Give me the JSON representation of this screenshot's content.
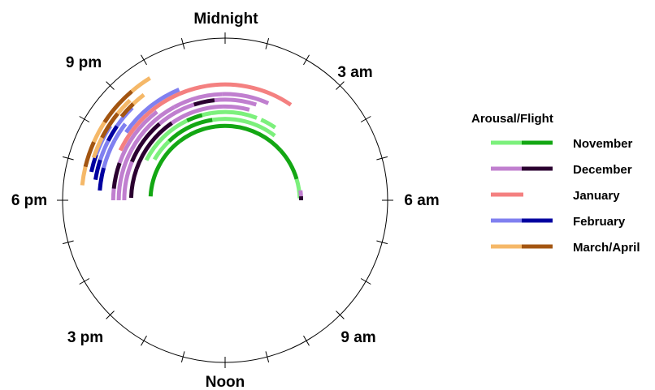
{
  "chart_data": {
    "type": "radial-actogram",
    "title": "",
    "clock_labels": {
      "top": "Midnight",
      "top_right": "3 am",
      "right": "6 am",
      "bottom_right": "9 am",
      "bottom": "Noon",
      "bottom_left": "3 pm",
      "left": "6 pm",
      "top_left": "9 pm"
    },
    "legend": {
      "title": "Arousal/Flight",
      "entries": [
        {
          "label": "November",
          "arousal_color": "#7cf07c",
          "flight_color": "#13a713"
        },
        {
          "label": "December",
          "arousal_color": "#c07fcf",
          "flight_color": "#2b0030"
        },
        {
          "label": "January",
          "arousal_color": "#f48080",
          "flight_color": null
        },
        {
          "label": "February",
          "arousal_color": "#8080f0",
          "flight_color": "#0000a0"
        },
        {
          "label": "March/April",
          "arousal_color": "#f5b868",
          "flight_color": "#a35511"
        }
      ]
    },
    "time_unit": "hour of day (0 = midnight)",
    "series": [
      {
        "name": "November",
        "bouts": [
          {
            "ring": 0.54,
            "segments": [
              [
                18.2,
                21.5,
                "flight"
              ],
              [
                21.5,
                3.2,
                "flight"
              ],
              [
                3.2,
                4.9,
                "flight"
              ],
              [
                4.9,
                5.9,
                "arousal"
              ]
            ]
          },
          {
            "ring": 0.59,
            "segments": [
              [
                20.0,
                21.1,
                "arousal"
              ],
              [
                21.1,
                23.4,
                "flight"
              ],
              [
                23.4,
                2.5,
                "arousal"
              ]
            ]
          },
          {
            "ring": 0.64,
            "segments": [
              [
                19.8,
                22.3,
                "arousal"
              ],
              [
                22.3,
                23.0,
                "flight"
              ],
              [
                23.0,
                23.4,
                "arousal"
              ],
              [
                23.4,
                1.4,
                "arousal"
              ],
              [
                1.6,
                2.3,
                "arousal"
              ]
            ]
          }
        ]
      },
      {
        "name": "December",
        "bouts": [
          {
            "ring": 0.68,
            "segments": [
              [
                18.1,
                19.3,
                "flight"
              ],
              [
                19.3,
                21.7,
                "flight"
              ],
              [
                21.7,
                23.9,
                "arousal"
              ],
              [
                23.9,
                1.0,
                "arousal"
              ]
            ]
          },
          {
            "ring": 0.73,
            "segments": [
              [
                18.0,
                19.5,
                "arousal"
              ],
              [
                19.5,
                21.3,
                "flight"
              ],
              [
                21.3,
                22.8,
                "arousal"
              ],
              [
                22.8,
                23.6,
                "flight"
              ],
              [
                23.6,
                1.2,
                "arousal"
              ]
            ]
          },
          {
            "ring": 0.77,
            "segments": [
              [
                18.0,
                19.9,
                "arousal"
              ],
              [
                19.9,
                22.1,
                "arousal"
              ],
              [
                22.1,
                23.9,
                "arousal"
              ],
              [
                23.9,
                1.6,
                "arousal"
              ]
            ]
          },
          {
            "ring": 0.81,
            "segments": [
              [
                18.0,
                18.4,
                "arousal"
              ],
              [
                18.4,
                19.3,
                "flight"
              ],
              [
                19.3,
                21.5,
                "arousal"
              ]
            ]
          },
          {
            "ring": 0.55,
            "segments": [
              [
                5.5,
                5.8,
                "arousal"
              ],
              [
                5.8,
                6.0,
                "flight"
              ]
            ]
          }
        ]
      },
      {
        "name": "January",
        "bouts": [
          {
            "ring": 0.84,
            "segments": [
              [
                19.7,
                2.3,
                "arousal"
              ]
            ]
          }
        ]
      },
      {
        "name": "February",
        "bouts": [
          {
            "ring": 0.87,
            "segments": [
              [
                20.3,
                22.5,
                "arousal"
              ]
            ]
          },
          {
            "ring": 0.91,
            "segments": [
              [
                18.3,
                19.0,
                "flight"
              ],
              [
                19.0,
                19.9,
                "arousal"
              ],
              [
                19.9,
                20.5,
                "arousal"
              ]
            ]
          },
          {
            "ring": 0.95,
            "segments": [
              [
                18.6,
                19.2,
                "flight"
              ],
              [
                19.2,
                19.8,
                "arousal"
              ],
              [
                19.8,
                20.3,
                "flight"
              ],
              [
                20.3,
                21.0,
                "arousal"
              ]
            ]
          },
          {
            "ring": 0.99,
            "segments": [
              [
                18.8,
                19.3,
                "flight"
              ],
              [
                19.3,
                20.2,
                "arousal"
              ]
            ]
          }
        ]
      },
      {
        "name": "March/April",
        "bouts": [
          {
            "ring": 0.965,
            "segments": [
              [
                20.6,
                21.1,
                "flight"
              ],
              [
                21.1,
                21.5,
                "arousal"
              ]
            ]
          },
          {
            "ring": 1.0,
            "segments": [
              [
                19.2,
                19.8,
                "arousal"
              ],
              [
                19.8,
                20.6,
                "flight"
              ],
              [
                20.6,
                21.1,
                "arousal"
              ]
            ]
          },
          {
            "ring": 1.04,
            "segments": [
              [
                18.4,
                18.9,
                "arousal"
              ],
              [
                18.9,
                19.6,
                "flight"
              ],
              [
                19.6,
                20.2,
                "arousal"
              ],
              [
                20.2,
                21.3,
                "flight"
              ],
              [
                21.3,
                21.9,
                "arousal"
              ]
            ]
          }
        ]
      }
    ],
    "grid": false,
    "legend_position": "right"
  }
}
